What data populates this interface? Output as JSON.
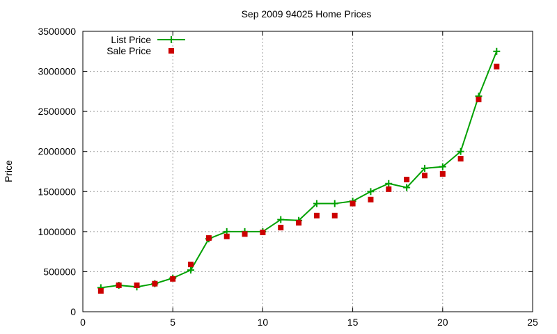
{
  "chart_data": {
    "type": "line",
    "title": "Sep 2009 94025 Home Prices",
    "xlabel": "",
    "ylabel": "Price",
    "xlim": [
      0,
      25
    ],
    "ylim": [
      0,
      3500000
    ],
    "xticks": [
      0,
      5,
      10,
      15,
      20,
      25
    ],
    "yticks": [
      0,
      500000,
      1000000,
      1500000,
      2000000,
      2500000,
      3000000,
      3500000
    ],
    "grid": true,
    "legend_position": "top-left",
    "series": [
      {
        "name": "List Price",
        "style": "line-plus",
        "color": "#00a000",
        "x": [
          1,
          2,
          3,
          4,
          5,
          6,
          7,
          8,
          9,
          10,
          11,
          12,
          13,
          14,
          15,
          16,
          17,
          18,
          19,
          20,
          21,
          22,
          23
        ],
        "y": [
          300000,
          330000,
          310000,
          350000,
          420000,
          520000,
          910000,
          1000000,
          1000000,
          1000000,
          1150000,
          1140000,
          1350000,
          1350000,
          1380000,
          1500000,
          1600000,
          1550000,
          1790000,
          1810000,
          2000000,
          2690000,
          3250000
        ]
      },
      {
        "name": "Sale Price",
        "style": "points-square",
        "color": "#cc0000",
        "x": [
          1,
          2,
          3,
          4,
          5,
          6,
          7,
          8,
          9,
          10,
          11,
          12,
          13,
          14,
          15,
          16,
          17,
          18,
          19,
          20,
          21,
          22,
          23
        ],
        "y": [
          260000,
          330000,
          330000,
          350000,
          410000,
          590000,
          920000,
          940000,
          970000,
          990000,
          1050000,
          1110000,
          1200000,
          1200000,
          1350000,
          1400000,
          1530000,
          1650000,
          1700000,
          1720000,
          1910000,
          2650000,
          3060000
        ]
      }
    ]
  }
}
